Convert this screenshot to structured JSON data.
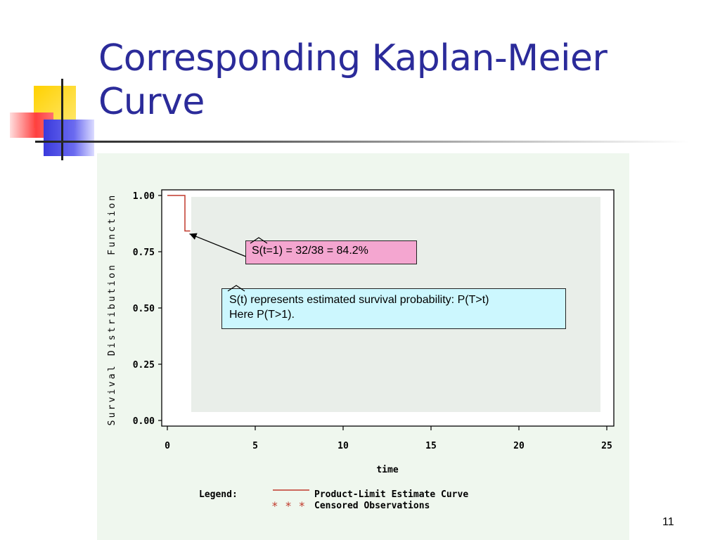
{
  "slide": {
    "title_line1": "Corresponding Kaplan-Meier",
    "title_line2": "Curve",
    "number": "11"
  },
  "chart_data": {
    "type": "line",
    "xlabel": "time",
    "ylabel": "Survival Distribution Function",
    "xlim": [
      0,
      25
    ],
    "ylim": [
      0,
      1
    ],
    "x_ticks": [
      0,
      5,
      10,
      15,
      20,
      25
    ],
    "x_tick_labels": [
      "0",
      "5",
      "10",
      "15",
      "20",
      "25"
    ],
    "y_ticks": [
      0,
      0.25,
      0.5,
      0.75,
      1
    ],
    "y_tick_labels": [
      "0.00",
      "0.25",
      "0.50",
      "0.75",
      "1.00"
    ],
    "grid": false,
    "series": [
      {
        "name": "Product-Limit Estimate Curve",
        "step": true,
        "x": [
          0,
          1,
          1,
          1.3
        ],
        "y": [
          1.0,
          1.0,
          0.842,
          0.842
        ],
        "color": "#C0392B"
      }
    ],
    "legend": {
      "title": "Legend:",
      "position": "bottom",
      "entries": [
        {
          "label": "Product-Limit Estimate Curve",
          "marker": "line",
          "color": "#C0392B"
        },
        {
          "label": "Censored Observations",
          "marker": "* * *",
          "color": "#C0392B"
        }
      ]
    },
    "annotations": [
      {
        "id": "s1",
        "s_text": "S",
        "rest_text": "(t=1) = 32/38 = 84.2%",
        "arrow_to": {
          "x": 1.1,
          "y": 0.842
        },
        "bg": "#F4A6D0"
      },
      {
        "id": "def",
        "s_text": "S",
        "rest_text": "(t) represents estimated survival probability: P(T>t)",
        "line2": "Here P(T>1).",
        "bg": "#CCF7FE"
      }
    ]
  },
  "colors": {
    "title": "#2B2B9A",
    "panel": "#EFF7EE",
    "plot_area": "#E9EEE9",
    "curve": "#C0392B"
  }
}
